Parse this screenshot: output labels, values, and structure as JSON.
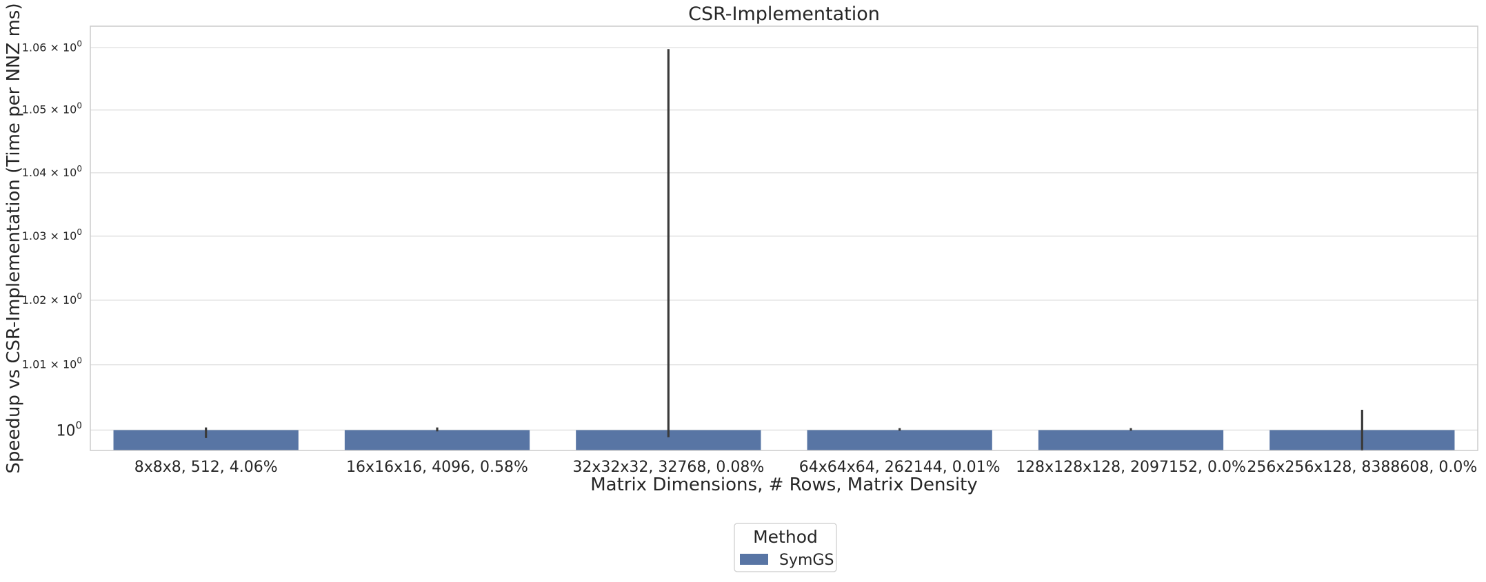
{
  "chart_data": {
    "type": "bar",
    "title": "CSR-Implementation",
    "xlabel": "Matrix Dimensions, # Rows, Matrix Density",
    "ylabel": "Speedup vs CSR-Implementation (Time per NNZ ms)",
    "yscale": "log",
    "ylim": [
      0.9969,
      1.0635
    ],
    "yticks": [
      {
        "value": 1.0,
        "label_base": "10",
        "label_exp": "0",
        "mantissa": "",
        "major": true
      },
      {
        "value": 1.01,
        "label_base": "10",
        "label_exp": "0",
        "mantissa": "1.01",
        "major": false
      },
      {
        "value": 1.02,
        "label_base": "10",
        "label_exp": "0",
        "mantissa": "1.02",
        "major": false
      },
      {
        "value": 1.03,
        "label_base": "10",
        "label_exp": "0",
        "mantissa": "1.03",
        "major": false
      },
      {
        "value": 1.04,
        "label_base": "10",
        "label_exp": "0",
        "mantissa": "1.04",
        "major": false
      },
      {
        "value": 1.05,
        "label_base": "10",
        "label_exp": "0",
        "mantissa": "1.05",
        "major": false
      },
      {
        "value": 1.06,
        "label_base": "10",
        "label_exp": "0",
        "mantissa": "1.06",
        "major": false
      }
    ],
    "categories": [
      "8x8x8, 512, 4.06%",
      "16x16x16, 4096, 0.58%",
      "32x32x32, 32768, 0.08%",
      "64x64x64, 262144, 0.01%",
      "128x128x128, 2097152, 0.0%",
      "256x256x128, 8388608, 0.0%"
    ],
    "series": [
      {
        "name": "SymGS",
        "color": "#5875a4",
        "values": [
          1.0,
          1.0,
          1.0,
          1.0,
          1.0,
          1.0
        ],
        "err_low": [
          0.9988,
          0.9998,
          0.9989,
          0.9999,
          0.9999,
          0.9968
        ],
        "err_high": [
          1.0004,
          1.0004,
          1.0598,
          1.0003,
          1.0003,
          1.0031
        ]
      }
    ],
    "grid": "horizontal",
    "legend": {
      "title": "Method",
      "placement": "bottom-center"
    }
  }
}
